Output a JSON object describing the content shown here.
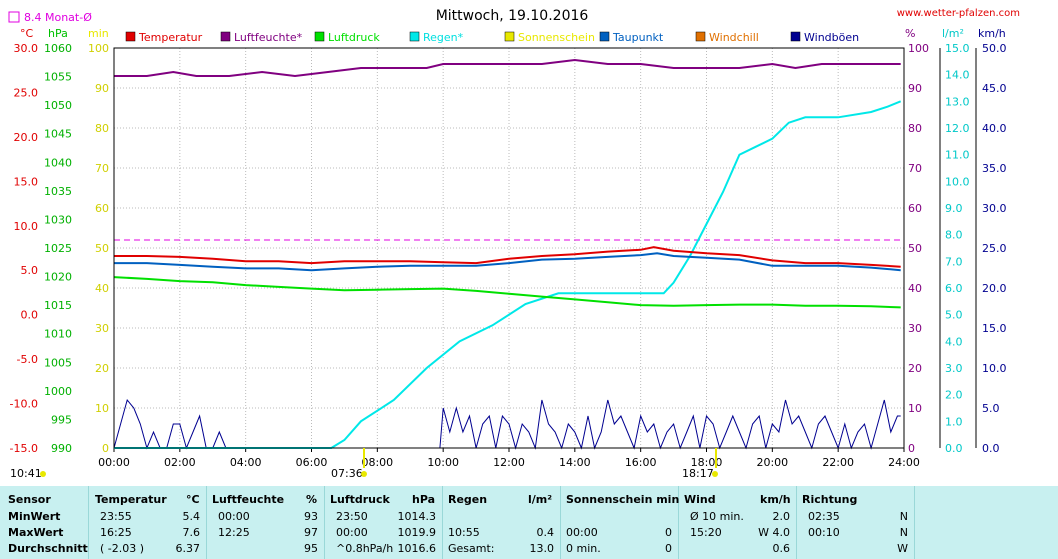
{
  "chart_data": {
    "type": "line",
    "title": "Mittwoch, 19.10.2016",
    "source": "www.wetter-pfalzen.com",
    "monthly_avg_label": "8.4 Monat-Ø",
    "axes": {
      "celsius": {
        "label": "°C",
        "min": -15,
        "max": 30,
        "step": 5,
        "ticks": [
          "30.0",
          "25.0",
          "20.0",
          "15.0",
          "10.0",
          "5.0",
          "0.0",
          "-5.0",
          "-10.0",
          "-15.0"
        ]
      },
      "hpa": {
        "label": "hPa",
        "min": 990,
        "max": 1060,
        "ticks": [
          "1060",
          "1055",
          "1050",
          "1045",
          "1040",
          "1035",
          "1030",
          "1025",
          "1020",
          "1015",
          "1010",
          "1005",
          "1000",
          "995",
          "990"
        ]
      },
      "min": {
        "label": "min",
        "min": 0,
        "max": 100,
        "ticks": [
          "100",
          "90",
          "80",
          "70",
          "60",
          "50",
          "40",
          "30",
          "20",
          "10",
          "0"
        ]
      },
      "percent": {
        "label": "%",
        "min": 0,
        "max": 100,
        "ticks": [
          "100",
          "90",
          "80",
          "70",
          "60",
          "50",
          "40",
          "30",
          "20",
          "10",
          "0"
        ]
      },
      "lm2": {
        "label": "l/m²",
        "min": 0,
        "max": 15,
        "ticks": [
          "15.0",
          "14.0",
          "13.0",
          "12.0",
          "11.0",
          "10.0",
          "9.0",
          "8.0",
          "7.0",
          "6.0",
          "5.0",
          "4.0",
          "3.0",
          "2.0",
          "1.0",
          "0.0"
        ]
      },
      "kmh": {
        "label": "km/h",
        "min": 0,
        "max": 50,
        "ticks": [
          "50.0",
          "45.0",
          "40.0",
          "35.0",
          "30.0",
          "25.0",
          "20.0",
          "15.0",
          "10.0",
          "5.0",
          "0.0"
        ]
      },
      "x": {
        "min": 0,
        "max": 24,
        "ticks": [
          "00:00",
          "02:00",
          "04:00",
          "06:00",
          "08:00",
          "10:00",
          "12:00",
          "14:00",
          "16:00",
          "18:00",
          "20:00",
          "22:00",
          "24:00"
        ]
      }
    },
    "sun": {
      "rise": "07:36",
      "set": "18:17",
      "moon_rise": "10:41"
    },
    "monthly_avg_celsius": 8.4,
    "legend": [
      {
        "name": "Temperatur",
        "color": "#e00000"
      },
      {
        "name": "Luftfeuchte*",
        "color": "#800080"
      },
      {
        "name": "Luftdruck",
        "color": "#00e000"
      },
      {
        "name": "Regen*",
        "color": "#00e8e8"
      },
      {
        "name": "Sonnenschein",
        "color": "#e8e800"
      },
      {
        "name": "Taupunkt",
        "color": "#0060c0"
      },
      {
        "name": "Windchill",
        "color": "#e07000"
      },
      {
        "name": "Windböen",
        "color": "#000090"
      }
    ],
    "series": [
      {
        "name": "Temperatur",
        "axis": "celsius",
        "color": "#e00000",
        "x": [
          0,
          1,
          2,
          3,
          4,
          5,
          6,
          7,
          8,
          9,
          10,
          11,
          12,
          13,
          14,
          15,
          16,
          16.4,
          17,
          18,
          19,
          20,
          21,
          22,
          23,
          23.9
        ],
        "values": [
          6.6,
          6.6,
          6.5,
          6.3,
          6.0,
          6.0,
          5.8,
          6.0,
          6.0,
          6.0,
          5.9,
          5.8,
          6.3,
          6.6,
          6.8,
          7.1,
          7.3,
          7.6,
          7.2,
          6.9,
          6.7,
          6.1,
          5.8,
          5.8,
          5.6,
          5.4
        ]
      },
      {
        "name": "Luftfeuchte*",
        "axis": "percent",
        "color": "#800080",
        "x": [
          0,
          1,
          1.8,
          2.5,
          3.5,
          4.5,
          5.5,
          6.5,
          7.5,
          8.5,
          9.5,
          10,
          11,
          12,
          13,
          14,
          15,
          16,
          17,
          18,
          19,
          20,
          20.7,
          21.5,
          22.5,
          23.5,
          23.9
        ],
        "values": [
          93,
          93,
          94,
          93,
          93,
          94,
          93,
          94,
          95,
          95,
          95,
          96,
          96,
          96,
          96,
          97,
          96,
          96,
          95,
          95,
          95,
          96,
          95,
          96,
          96,
          96,
          96
        ]
      },
      {
        "name": "Luftdruck",
        "axis": "hpa",
        "color": "#00e000",
        "x": [
          0,
          1,
          2,
          3,
          4,
          5,
          6,
          7,
          8,
          9,
          10,
          11,
          12,
          13,
          14,
          15,
          16,
          17,
          18,
          19,
          20,
          21,
          22,
          23,
          23.9
        ],
        "values": [
          1019.9,
          1019.6,
          1019.2,
          1019.0,
          1018.5,
          1018.2,
          1017.9,
          1017.6,
          1017.7,
          1017.8,
          1017.9,
          1017.5,
          1017.0,
          1016.5,
          1016.0,
          1015.5,
          1015.0,
          1014.9,
          1015.0,
          1015.1,
          1015.1,
          1014.9,
          1014.9,
          1014.8,
          1014.6
        ]
      },
      {
        "name": "Regen*",
        "axis": "lm2",
        "color": "#00e8e8",
        "x": [
          0,
          6.6,
          7,
          7.5,
          8.5,
          9.5,
          10.5,
          11.5,
          12.5,
          13.5,
          14.5,
          15.5,
          16.7,
          17,
          17.5,
          18,
          18.5,
          19,
          19.5,
          20,
          20.5,
          21,
          22,
          23,
          23.5,
          23.9
        ],
        "values": [
          0,
          0,
          0.3,
          1.0,
          1.8,
          3.0,
          4.0,
          4.6,
          5.4,
          5.8,
          5.8,
          5.8,
          5.8,
          6.2,
          7.2,
          8.4,
          9.6,
          11.0,
          11.3,
          11.6,
          12.2,
          12.4,
          12.4,
          12.6,
          12.8,
          13.0
        ]
      },
      {
        "name": "Taupunkt",
        "axis": "celsius",
        "color": "#0060c0",
        "x": [
          0,
          1,
          2,
          3,
          4,
          5,
          6,
          7,
          8,
          9,
          10,
          11,
          12,
          13,
          14,
          15,
          16,
          16.5,
          17,
          18,
          19,
          20,
          21,
          22,
          23,
          23.9
        ],
        "values": [
          5.8,
          5.8,
          5.6,
          5.4,
          5.2,
          5.2,
          5.0,
          5.2,
          5.4,
          5.5,
          5.5,
          5.5,
          5.8,
          6.2,
          6.3,
          6.5,
          6.7,
          6.9,
          6.6,
          6.4,
          6.2,
          5.5,
          5.5,
          5.5,
          5.3,
          5.0
        ]
      },
      {
        "name": "Windböen",
        "axis": "kmh",
        "color": "#000090",
        "x": [
          0,
          0.2,
          0.4,
          0.6,
          0.8,
          1,
          1.2,
          1.4,
          1.6,
          1.8,
          2,
          2.2,
          2.4,
          2.6,
          2.8,
          3,
          3.2,
          3.4,
          3.6,
          4,
          6,
          8,
          9.9,
          10,
          10.2,
          10.4,
          10.6,
          10.8,
          11,
          11.2,
          11.4,
          11.6,
          11.8,
          12,
          12.2,
          12.4,
          12.6,
          12.8,
          13,
          13.2,
          13.4,
          13.6,
          13.8,
          14,
          14.2,
          14.4,
          14.6,
          14.8,
          15,
          15.2,
          15.4,
          15.6,
          15.8,
          16,
          16.2,
          16.4,
          16.6,
          16.8,
          17,
          17.2,
          17.4,
          17.6,
          17.8,
          18,
          18.2,
          18.4,
          18.6,
          18.8,
          19,
          19.2,
          19.4,
          19.6,
          19.8,
          20,
          20.2,
          20.4,
          20.6,
          20.8,
          21,
          21.2,
          21.4,
          21.6,
          21.8,
          22,
          22.2,
          22.4,
          22.6,
          22.8,
          23,
          23.2,
          23.4,
          23.6,
          23.8,
          23.9
        ],
        "values": [
          0,
          3,
          6,
          5,
          3,
          0,
          2,
          0,
          0,
          3,
          3,
          0,
          2,
          4,
          0,
          0,
          2,
          0,
          0,
          0,
          0,
          0,
          0,
          5,
          2,
          5,
          2,
          4,
          0,
          3,
          4,
          0,
          4,
          3,
          0,
          3,
          2,
          0,
          6,
          3,
          2,
          0,
          3,
          2,
          0,
          4,
          0,
          2,
          6,
          3,
          4,
          2,
          0,
          4,
          2,
          3,
          0,
          2,
          3,
          0,
          2,
          4,
          0,
          4,
          3,
          0,
          2,
          4,
          2,
          0,
          3,
          4,
          0,
          3,
          2,
          6,
          3,
          4,
          2,
          0,
          3,
          4,
          2,
          0,
          3,
          0,
          2,
          3,
          0,
          3,
          6,
          2,
          4,
          4
        ]
      }
    ]
  },
  "stats": {
    "headers": {
      "sensor": "Sensor",
      "temperatur": "Temperatur",
      "temperatur_unit": "°C",
      "luftfeuchte": "Luftfeuchte",
      "luftfeuchte_unit": "%",
      "luftdruck": "Luftdruck",
      "luftdruck_unit": "hPa",
      "regen": "Regen",
      "regen_unit": "l/m²",
      "sonnenschein": "Sonnenschein min",
      "wind": "Wind",
      "wind_unit": "km/h",
      "richtung": "Richtung"
    },
    "rows": [
      {
        "label": "MinWert",
        "t_time": "23:55",
        "t_val": "5.4",
        "h_time": "00:00",
        "h_val": "93",
        "p_time": "23:50",
        "p_val": "1014.3",
        "r_time": "",
        "r_val": "",
        "s_time": "",
        "s_val": "",
        "w_time": "Ø 10 min.",
        "w_val": "2.0",
        "d_time": "02:35",
        "d_val": "N"
      },
      {
        "label": "MaxWert",
        "t_time": "16:25",
        "t_val": "7.6",
        "h_time": "12:25",
        "h_val": "97",
        "p_time": "00:00",
        "p_val": "1019.9",
        "r_time": "10:55",
        "r_val": "0.4",
        "s_time": "00:00",
        "s_val": "0",
        "w_time": "15:20",
        "w_val": "W 4.0",
        "d_time": "00:10",
        "d_val": "N"
      },
      {
        "label": "Durchschnitt",
        "t_time": "( -2.03 )",
        "t_val": "6.37",
        "h_time": "",
        "h_val": "95",
        "p_time": "^0.8hPa/h",
        "p_val": "1016.6",
        "r_time": "Gesamt:",
        "r_val": "13.0",
        "s_time": "0 min.",
        "s_val": "0",
        "w_time": "",
        "w_val": "0.6",
        "d_time": "",
        "d_val": "W"
      }
    ]
  }
}
